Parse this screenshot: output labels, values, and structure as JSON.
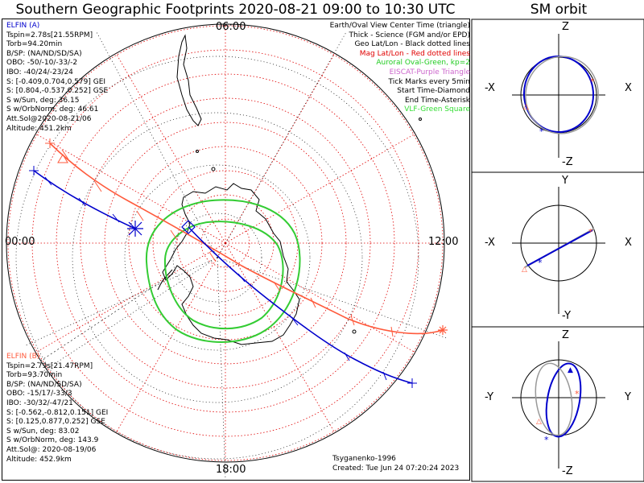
{
  "header": {
    "title": "Southern Geographic Footprints 2020-08-21 09:00 to 10:30 UTC",
    "sm_title": "SM orbit"
  },
  "elfin_a": {
    "name": "ELFIN (A)",
    "lines": [
      "Tspin=2.78s[21.55RPM]",
      "Torb=94.20min",
      "B/SP: (NA/ND/SD/SA)",
      "OBO: -50/-10/-33/-2",
      "IBO: -40/24/-23/24",
      "S: [-0.409,0.704,0.579] GEI",
      "S: [0.804,-0.537,0.252] GSE",
      "S w/Sun, deg: 36.15",
      "S w/OrbNorm, deg: 46.61",
      "Att.Sol@2020-08-21/06",
      "Altitude: 451.2km"
    ],
    "color": "#0000cc"
  },
  "elfin_b": {
    "name": "ELFIN (B)",
    "lines": [
      "Tspin=2.79s[21.47RPM]",
      "Torb=93.70min",
      "B/SP: (NA/ND/SD/SA)",
      "OBO: -15/17/-33/3",
      "IBO: -30/32/-47/21",
      "S: [-0.562,-0.812,0.151] GEI",
      "S: [0.125,0.877,0.252] GSE",
      "S w/Sun, deg: 83.02",
      "S w/OrbNorm, deg: 143.9",
      "Att.Sol@: 2020-08-19/06",
      "Altitude: 452.9km"
    ],
    "color": "#ff5a3c"
  },
  "legend": {
    "l1": "Earth/Oval View Center Time (triangle)",
    "l2": "Thick - Science (FGM and/or EPD)",
    "l3": "Geo Lat/Lon - Black dotted lines",
    "l4": "Mag Lat/Lon - Red dotted lines",
    "l5": "Auroral Oval-Green, kp=2",
    "l6": "EISCAT-Purple Triangle",
    "l7": "Tick Marks every 5min",
    "l8": "Start Time-Diamond",
    "l9": "End Time-Asterisk",
    "l10": "VLF-Green Square"
  },
  "clock": {
    "top": "06:00",
    "left": "00:00",
    "right": "12:00",
    "bottom": "18:00"
  },
  "footer": {
    "credit": "Tsyganenko-1996",
    "created": "Created: Tue Jun 24 07:20:24 2023"
  },
  "sm_panels": {
    "p1": {
      "top": "Z",
      "bottom": "-Z",
      "left": "-X",
      "right": "X"
    },
    "p2": {
      "top": "Y",
      "bottom": "-Y",
      "left": "-X",
      "right": "X"
    },
    "p3": {
      "top": "Z",
      "bottom": "-Z",
      "left": "-Y",
      "right": "Y"
    }
  },
  "colors": {
    "elfin_a": "#0000cc",
    "elfin_b": "#ff5a3c",
    "mag_grid": "#e00000",
    "oval": "#33cc33",
    "geo_grid": "#000000"
  }
}
